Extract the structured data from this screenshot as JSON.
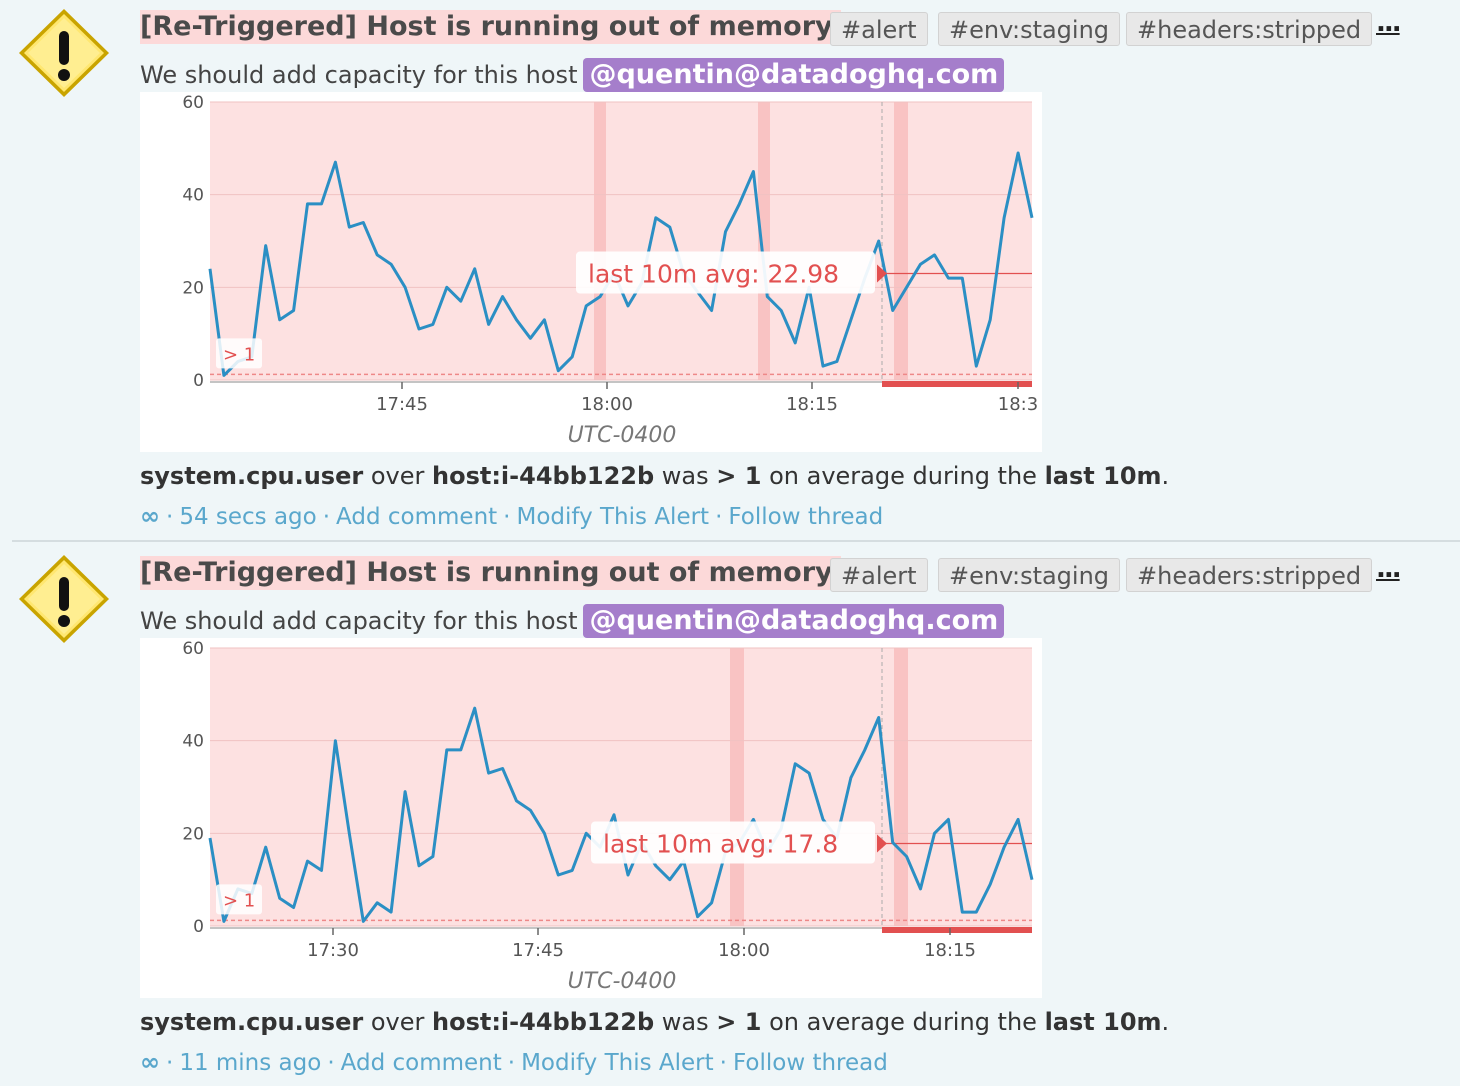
{
  "colors": {
    "background": "#eff6f8",
    "title_highlight": "#fcd9d9",
    "mention": "#a57ecb",
    "link": "#5aa7cc",
    "series_line": "#2b8fc4",
    "alert_zone": "#fde1e1",
    "threshold": "#e25050"
  },
  "events": [
    {
      "title": "[Re-Triggered] Host is running out of memory",
      "tags": [
        "#alert",
        "#env:staging",
        "#headers:stripped"
      ],
      "more_label": "...",
      "message": "We should add capacity for this host",
      "mention": "@quentin@datadoghq.com",
      "summary": {
        "metric": "system.cpu.user",
        "over": "over",
        "scope": "host:i-44bb122b",
        "was": "was",
        "comparator": "> 1",
        "during": "on average during the",
        "window": "last 10m",
        "end": "."
      },
      "footer": {
        "icon": "infinity-icon",
        "time": "54 secs ago",
        "add_comment": "Add comment",
        "modify": "Modify This Alert",
        "follow": "Follow thread"
      },
      "chart_data": {
        "type": "line",
        "ylim": [
          0,
          60
        ],
        "yticks": [
          "0",
          "20",
          "40",
          "60"
        ],
        "xticks": [
          "17:45",
          "18:00",
          "18:15",
          "18:3"
        ],
        "xlabel": "UTC-0400",
        "threshold_label": "> 1",
        "threshold": 1,
        "avg_label": "last 10m avg: 22.98",
        "avg_value": 22.98,
        "series": [
          {
            "values": [
              24,
              1,
              4,
              5,
              29,
              13,
              15,
              38,
              38,
              47,
              33,
              34,
              27,
              25,
              20,
              11,
              12,
              20,
              17,
              24,
              12,
              18,
              13,
              9,
              13,
              2,
              5,
              16,
              18,
              23,
              16,
              21,
              35,
              33,
              23,
              19,
              15,
              32,
              38,
              45,
              18,
              15,
              8,
              20,
              3,
              4,
              13,
              22,
              30,
              15,
              20,
              25,
              27,
              22,
              22,
              3,
              13,
              35,
              49,
              35
            ]
          }
        ]
      }
    },
    {
      "title": "[Re-Triggered] Host is running out of memory",
      "tags": [
        "#alert",
        "#env:staging",
        "#headers:stripped"
      ],
      "more_label": "...",
      "message": "We should add capacity for this host",
      "mention": "@quentin@datadoghq.com",
      "summary": {
        "metric": "system.cpu.user",
        "over": "over",
        "scope": "host:i-44bb122b",
        "was": "was",
        "comparator": "> 1",
        "during": "on average during the",
        "window": "last 10m",
        "end": "."
      },
      "footer": {
        "icon": "infinity-icon",
        "time": "11 mins ago",
        "add_comment": "Add comment",
        "modify": "Modify This Alert",
        "follow": "Follow thread"
      },
      "chart_data": {
        "type": "line",
        "ylim": [
          0,
          60
        ],
        "yticks": [
          "0",
          "20",
          "40",
          "60"
        ],
        "xticks": [
          "17:30",
          "17:45",
          "18:00",
          "18:15"
        ],
        "xlabel": "UTC-0400",
        "threshold_label": "> 1",
        "threshold": 1,
        "avg_label": "last 10m avg: 17.8",
        "avg_value": 17.8,
        "series": [
          {
            "values": [
              19,
              1,
              8,
              7,
              17,
              6,
              4,
              14,
              12,
              40,
              20,
              1,
              5,
              3,
              29,
              13,
              15,
              38,
              38,
              47,
              33,
              34,
              27,
              25,
              20,
              11,
              12,
              20,
              17,
              24,
              11,
              18,
              13,
              10,
              14,
              2,
              5,
              16,
              18,
              23,
              16,
              21,
              35,
              33,
              23,
              19,
              32,
              38,
              45,
              18,
              15,
              8,
              20,
              23,
              3,
              3,
              9,
              17,
              23,
              10
            ]
          }
        ]
      }
    }
  ]
}
